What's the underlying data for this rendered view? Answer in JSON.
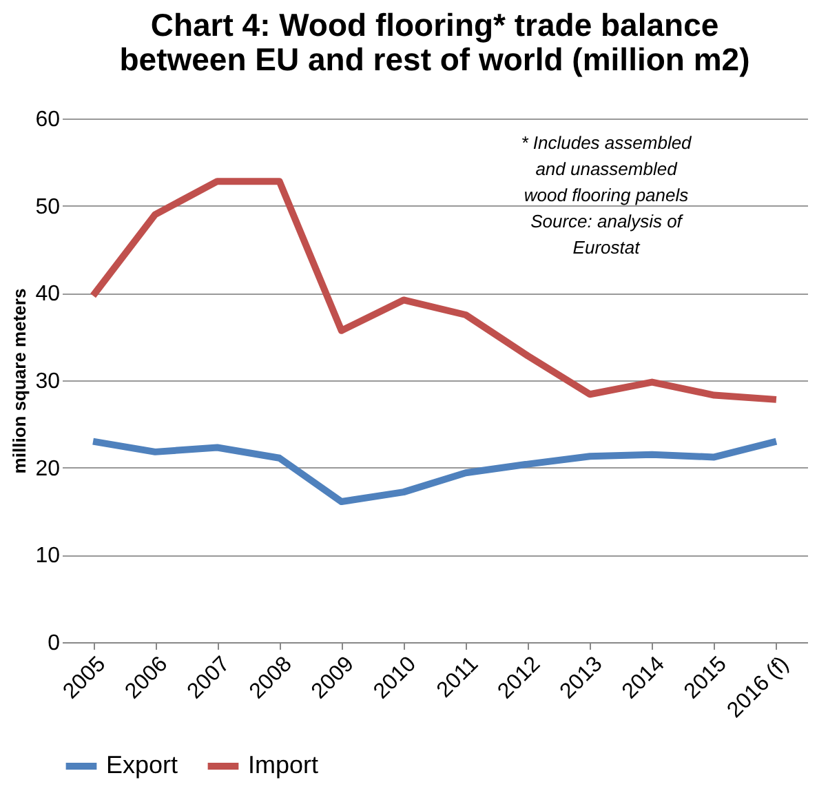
{
  "chart_data": {
    "type": "line",
    "title": "Chart 4: Wood flooring* trade balance\nbetween EU and rest of world (million m2)",
    "ylabel": "million square meters",
    "categories": [
      "2005",
      "2006",
      "2007",
      "2008",
      "2009",
      "2010",
      "2011",
      "2012",
      "2013",
      "2014",
      "2015",
      "2016 (f)"
    ],
    "series": [
      {
        "name": "Export",
        "color": "#4f81bd",
        "values": [
          23,
          21.8,
          22.3,
          21.1,
          16.1,
          17.2,
          19.4,
          20.4,
          21.3,
          21.5,
          21.2,
          23
        ]
      },
      {
        "name": "Import",
        "color": "#c0504d",
        "values": [
          39.7,
          49,
          52.8,
          52.8,
          35.7,
          39.2,
          37.5,
          32.8,
          28.4,
          29.8,
          28.3,
          27.8
        ]
      }
    ],
    "ylim": [
      0,
      60
    ],
    "yticks": [
      0,
      10,
      20,
      30,
      40,
      50,
      60
    ],
    "grid": "y",
    "legend": "bottom",
    "marker": "none",
    "line_style": "solid",
    "annotations": [
      "* Includes assembled\nand unassembled\nwood flooring panels",
      "Source: analysis of\nEurostat"
    ]
  }
}
